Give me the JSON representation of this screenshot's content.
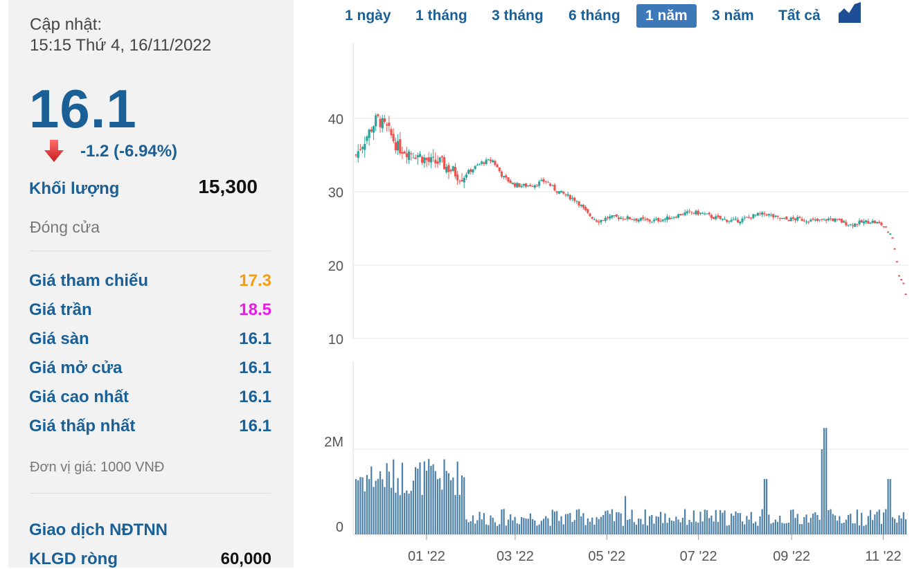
{
  "info": {
    "update_label": "Cập nhật:",
    "update_time": "15:15 Thứ 4, 16/11/2022",
    "price": "16.1",
    "change": "-1.2 (-6.94%)",
    "volume_label": "Khối lượng",
    "volume_value": "15,300",
    "status": "Đóng cửa",
    "rows": [
      {
        "label": "Giá tham chiếu",
        "value": "17.3",
        "color": "#f39c12"
      },
      {
        "label": "Giá trần",
        "value": "18.5",
        "color": "#e81be8"
      },
      {
        "label": "Giá sàn",
        "value": "16.1",
        "color": "#1a6096"
      },
      {
        "label": "Giá mở cửa",
        "value": "16.1",
        "color": "#1a6096"
      },
      {
        "label": "Giá cao nhất",
        "value": "16.1",
        "color": "#1a6096"
      },
      {
        "label": "Giá thấp nhất",
        "value": "16.1",
        "color": "#1a6096"
      }
    ],
    "unit_note": "Đơn vị giá: 1000 VNĐ",
    "foreign_title": "Giao dịch NĐTNN",
    "net_label": "KLGD ròng",
    "net_value": "60,000"
  },
  "tabs": {
    "items": [
      "1 ngày",
      "1 tháng",
      "3 tháng",
      "6 tháng",
      "1 năm",
      "3 năm",
      "Tất cả"
    ],
    "active": "1 năm"
  },
  "colors": {
    "up": "#26a69a",
    "down": "#ef5350",
    "accent": "#1a6096",
    "grid": "#e6e6e6"
  },
  "chart_data": {
    "type": "candlestick",
    "price_axis": {
      "ticks": [
        10,
        20,
        30,
        40
      ],
      "range": [
        10,
        50
      ]
    },
    "volume_axis": {
      "ticks": [
        "0",
        "2M"
      ]
    },
    "x_ticks": [
      "01 '22",
      "03 '22",
      "05 '22",
      "07 '22",
      "09 '22",
      "11 '22"
    ],
    "price_series": [
      {
        "date": "2021-11-15",
        "close": 35.0
      },
      {
        "date": "2021-11-22",
        "close": 37.5
      },
      {
        "date": "2021-11-29",
        "close": 40.0
      },
      {
        "date": "2021-12-06",
        "close": 38.5
      },
      {
        "date": "2021-12-13",
        "close": 36.0
      },
      {
        "date": "2021-12-20",
        "close": 35.5
      },
      {
        "date": "2021-12-27",
        "close": 35.0
      },
      {
        "date": "2022-01-03",
        "close": 34.0
      },
      {
        "date": "2022-01-10",
        "close": 34.0
      },
      {
        "date": "2022-01-17",
        "close": 33.0
      },
      {
        "date": "2022-01-24",
        "close": 32.0
      },
      {
        "date": "2022-01-31",
        "close": 33.0
      },
      {
        "date": "2022-02-07",
        "close": 34.0
      },
      {
        "date": "2022-02-14",
        "close": 34.3
      },
      {
        "date": "2022-02-21",
        "close": 32.0
      },
      {
        "date": "2022-02-28",
        "close": 31.0
      },
      {
        "date": "2022-03-07",
        "close": 30.8
      },
      {
        "date": "2022-03-14",
        "close": 31.0
      },
      {
        "date": "2022-03-21",
        "close": 31.5
      },
      {
        "date": "2022-03-28",
        "close": 30.2
      },
      {
        "date": "2022-04-04",
        "close": 29.5
      },
      {
        "date": "2022-04-11",
        "close": 28.8
      },
      {
        "date": "2022-04-18",
        "close": 27.0
      },
      {
        "date": "2022-04-25",
        "close": 26.0
      },
      {
        "date": "2022-05-02",
        "close": 26.5
      },
      {
        "date": "2022-05-09",
        "close": 26.5
      },
      {
        "date": "2022-05-16",
        "close": 26.4
      },
      {
        "date": "2022-05-23",
        "close": 26.2
      },
      {
        "date": "2022-05-30",
        "close": 26.0
      },
      {
        "date": "2022-06-06",
        "close": 26.2
      },
      {
        "date": "2022-06-13",
        "close": 26.5
      },
      {
        "date": "2022-06-20",
        "close": 27.0
      },
      {
        "date": "2022-06-27",
        "close": 27.2
      },
      {
        "date": "2022-07-04",
        "close": 27.0
      },
      {
        "date": "2022-07-11",
        "close": 26.5
      },
      {
        "date": "2022-07-18",
        "close": 26.2
      },
      {
        "date": "2022-07-25",
        "close": 26.0
      },
      {
        "date": "2022-08-01",
        "close": 26.3
      },
      {
        "date": "2022-08-08",
        "close": 26.8
      },
      {
        "date": "2022-08-15",
        "close": 27.0
      },
      {
        "date": "2022-08-22",
        "close": 26.4
      },
      {
        "date": "2022-08-29",
        "close": 26.2
      },
      {
        "date": "2022-09-05",
        "close": 26.3
      },
      {
        "date": "2022-09-12",
        "close": 26.1
      },
      {
        "date": "2022-09-19",
        "close": 26.0
      },
      {
        "date": "2022-09-26",
        "close": 26.3
      },
      {
        "date": "2022-10-03",
        "close": 26.0
      },
      {
        "date": "2022-10-10",
        "close": 25.5
      },
      {
        "date": "2022-10-17",
        "close": 25.8
      },
      {
        "date": "2022-10-24",
        "close": 26.0
      },
      {
        "date": "2022-10-31",
        "close": 25.5
      },
      {
        "date": "2022-11-07",
        "close": 24.0
      },
      {
        "date": "2022-11-09",
        "close": 22.0
      },
      {
        "date": "2022-11-10",
        "close": 20.5
      },
      {
        "date": "2022-11-11",
        "close": 19.0
      },
      {
        "date": "2022-11-14",
        "close": 17.8
      },
      {
        "date": "2022-11-15",
        "close": 17.3
      },
      {
        "date": "2022-11-16",
        "close": 16.1
      }
    ]
  }
}
